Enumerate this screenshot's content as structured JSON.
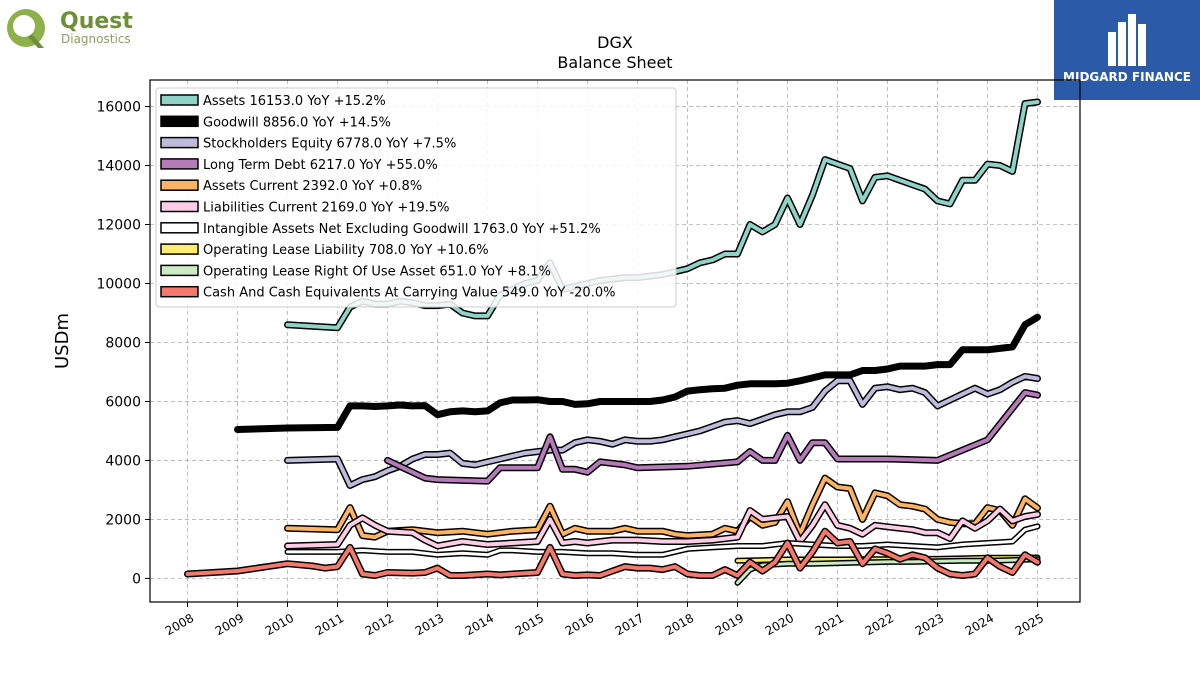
{
  "brand": {
    "left_logo_name": "Quest",
    "left_logo_sub": "Diagnostics",
    "right_logo_text": "MIDGARD FINANCE"
  },
  "chart_data": {
    "type": "line",
    "title": "DGX",
    "subtitle": "Balance  Sheet",
    "ylabel": "USDm",
    "xlabel": "",
    "ylim": [
      -800,
      16900
    ],
    "xlim": [
      2007.25,
      2025.85
    ],
    "yticks": [
      0,
      2000,
      4000,
      6000,
      8000,
      10000,
      12000,
      14000,
      16000
    ],
    "xticks": [
      2008,
      2009,
      2010,
      2011,
      2012,
      2013,
      2014,
      2015,
      2016,
      2017,
      2018,
      2019,
      2020,
      2021,
      2022,
      2023,
      2024,
      2025
    ],
    "grid": true,
    "legend_position": "top-left",
    "series": [
      {
        "name": "Assets",
        "legend": "Assets  16153.0 YoY +15.2%",
        "color": "#8dd3c7",
        "width": 4,
        "x": [
          2010.0,
          2011.0,
          2011.25,
          2011.5,
          2011.75,
          2012.0,
          2012.25,
          2012.5,
          2012.75,
          2013.0,
          2013.25,
          2013.5,
          2013.75,
          2014.0,
          2014.25,
          2014.5,
          2014.75,
          2015.0,
          2015.25,
          2015.5,
          2015.75,
          2016.0,
          2016.25,
          2016.5,
          2016.75,
          2017.0,
          2017.25,
          2017.5,
          2017.75,
          2018.0,
          2018.25,
          2018.5,
          2018.75,
          2019.0,
          2019.25,
          2019.5,
          2019.75,
          2020.0,
          2020.25,
          2020.5,
          2020.75,
          2021.0,
          2021.25,
          2021.5,
          2021.75,
          2022.0,
          2022.25,
          2022.5,
          2022.75,
          2023.0,
          2023.25,
          2023.5,
          2023.75,
          2024.0,
          2024.25,
          2024.5,
          2024.75,
          2025.0
        ],
        "y": [
          8600,
          8500,
          9200,
          9400,
          9300,
          9300,
          9400,
          9350,
          9250,
          9250,
          9300,
          9000,
          8900,
          8900,
          9600,
          9800,
          10000,
          10100,
          10700,
          9800,
          9900,
          10000,
          10100,
          10150,
          10200,
          10200,
          10250,
          10300,
          10400,
          10500,
          10700,
          10800,
          11000,
          11000,
          12000,
          11750,
          12000,
          12900,
          12000,
          13000,
          14200,
          14050,
          13900,
          12800,
          13600,
          13650,
          13500,
          13350,
          13200,
          12800,
          12700,
          13500,
          13500,
          14050,
          14000,
          13800,
          16100,
          16153
        ]
      },
      {
        "name": "Goodwill",
        "legend": "Goodwill  8856.0 YoY +14.5%",
        "color": "#000000",
        "width": 7,
        "x": [
          2009.0,
          2010.0,
          2011.0,
          2011.25,
          2011.5,
          2011.75,
          2012.0,
          2012.25,
          2012.5,
          2012.75,
          2013.0,
          2013.25,
          2013.5,
          2013.75,
          2014.0,
          2014.25,
          2014.5,
          2014.75,
          2015.0,
          2015.25,
          2015.5,
          2015.75,
          2016.0,
          2016.25,
          2016.5,
          2016.75,
          2017.0,
          2017.25,
          2017.5,
          2017.75,
          2018.0,
          2018.25,
          2018.5,
          2018.75,
          2019.0,
          2019.25,
          2019.5,
          2019.75,
          2020.0,
          2020.25,
          2020.5,
          2020.75,
          2021.0,
          2021.25,
          2021.5,
          2021.75,
          2022.0,
          2022.25,
          2022.5,
          2022.75,
          2023.0,
          2023.25,
          2023.5,
          2023.75,
          2024.0,
          2024.25,
          2024.5,
          2024.75,
          2025.0
        ],
        "y": [
          5050,
          5100,
          5120,
          5850,
          5850,
          5830,
          5850,
          5880,
          5850,
          5860,
          5550,
          5650,
          5680,
          5650,
          5680,
          5950,
          6050,
          6050,
          6060,
          6000,
          6000,
          5900,
          5920,
          6000,
          6000,
          6000,
          6000,
          6000,
          6050,
          6150,
          6350,
          6400,
          6430,
          6450,
          6550,
          6600,
          6600,
          6600,
          6620,
          6700,
          6800,
          6900,
          6900,
          6900,
          7050,
          7050,
          7100,
          7200,
          7200,
          7200,
          7250,
          7250,
          7750,
          7750,
          7750,
          7800,
          7850,
          8600,
          8856
        ]
      },
      {
        "name": "Stockholders Equity",
        "legend": "Stockholders Equity  6778.0 YoY +7.5%",
        "color": "#bebada",
        "width": 4,
        "x": [
          2010.0,
          2011.0,
          2011.25,
          2011.5,
          2011.75,
          2012.0,
          2012.25,
          2012.5,
          2012.75,
          2013.0,
          2013.25,
          2013.5,
          2013.75,
          2014.0,
          2014.25,
          2014.5,
          2014.75,
          2015.0,
          2015.25,
          2015.5,
          2015.75,
          2016.0,
          2016.25,
          2016.5,
          2016.75,
          2017.0,
          2017.25,
          2017.5,
          2017.75,
          2018.0,
          2018.25,
          2018.5,
          2018.75,
          2019.0,
          2019.25,
          2019.5,
          2019.75,
          2020.0,
          2020.25,
          2020.5,
          2020.75,
          2021.0,
          2021.25,
          2021.5,
          2021.75,
          2022.0,
          2022.25,
          2022.5,
          2022.75,
          2023.0,
          2023.25,
          2023.5,
          2023.75,
          2024.0,
          2024.25,
          2024.5,
          2024.75,
          2025.0
        ],
        "y": [
          4000,
          4050,
          3150,
          3350,
          3450,
          3650,
          3800,
          4050,
          4200,
          4200,
          4250,
          3900,
          3850,
          3950,
          4050,
          4150,
          4250,
          4300,
          4350,
          4350,
          4600,
          4700,
          4650,
          4550,
          4700,
          4650,
          4650,
          4700,
          4800,
          4900,
          5000,
          5150,
          5300,
          5350,
          5250,
          5400,
          5550,
          5650,
          5650,
          5800,
          6350,
          6700,
          6700,
          5900,
          6450,
          6500,
          6400,
          6450,
          6300,
          5850,
          6050,
          6250,
          6450,
          6250,
          6400,
          6650,
          6850,
          6778
        ]
      },
      {
        "name": "Long Term Debt",
        "legend": "Long Term Debt  6217.0 YoY +55.0%",
        "color": "#b57ab8",
        "width": 4,
        "x": [
          2012.0,
          2012.25,
          2012.5,
          2012.75,
          2013.0,
          2014.0,
          2014.25,
          2014.5,
          2014.75,
          2015.0,
          2015.25,
          2015.5,
          2015.75,
          2016.0,
          2016.25,
          2016.5,
          2016.75,
          2017.0,
          2018.0,
          2019.0,
          2019.25,
          2019.5,
          2019.75,
          2020.0,
          2020.25,
          2020.5,
          2020.75,
          2021.0,
          2022.0,
          2023.0,
          2024.0,
          2024.75,
          2025.0
        ],
        "y": [
          4000,
          3800,
          3600,
          3400,
          3350,
          3300,
          3750,
          3750,
          3750,
          3750,
          4800,
          3700,
          3700,
          3600,
          3950,
          3900,
          3850,
          3750,
          3800,
          3950,
          4300,
          4000,
          4000,
          4850,
          4000,
          4600,
          4600,
          4050,
          4050,
          4000,
          4700,
          6300,
          6217
        ]
      },
      {
        "name": "Assets Current",
        "legend": "Assets Current  2392.0 YoY +0.8%",
        "color": "#fdb462",
        "width": 4,
        "x": [
          2010.0,
          2011.0,
          2011.25,
          2011.5,
          2011.75,
          2012.0,
          2012.5,
          2013.0,
          2013.5,
          2014.0,
          2014.5,
          2015.0,
          2015.25,
          2015.5,
          2015.75,
          2016.0,
          2016.5,
          2016.75,
          2017.0,
          2017.5,
          2017.75,
          2018.0,
          2018.5,
          2018.75,
          2019.0,
          2019.25,
          2019.5,
          2019.75,
          2020.0,
          2020.25,
          2020.5,
          2020.75,
          2021.0,
          2021.25,
          2021.5,
          2021.75,
          2022.0,
          2022.25,
          2022.5,
          2022.75,
          2023.0,
          2023.25,
          2023.5,
          2023.75,
          2024.0,
          2024.25,
          2024.5,
          2024.75,
          2025.0
        ],
        "y": [
          1700,
          1650,
          2400,
          1450,
          1400,
          1600,
          1650,
          1550,
          1600,
          1500,
          1600,
          1650,
          2450,
          1500,
          1700,
          1600,
          1600,
          1700,
          1600,
          1600,
          1500,
          1450,
          1500,
          1700,
          1600,
          2100,
          1800,
          1900,
          2600,
          1500,
          2500,
          3400,
          3100,
          3050,
          2000,
          2900,
          2800,
          2500,
          2450,
          2350,
          2000,
          1900,
          1850,
          1850,
          2400,
          2300,
          1800,
          2700,
          2392
        ]
      },
      {
        "name": "Liabilities Current",
        "legend": "Liabilities Current  2169.0 YoY +19.5%",
        "color": "#fccde5",
        "width": 4,
        "x": [
          2010.0,
          2011.0,
          2011.25,
          2011.5,
          2011.75,
          2012.0,
          2012.5,
          2012.75,
          2013.0,
          2013.5,
          2014.0,
          2014.5,
          2015.0,
          2015.25,
          2015.5,
          2015.75,
          2016.0,
          2016.5,
          2017.0,
          2017.5,
          2018.0,
          2018.5,
          2019.0,
          2019.25,
          2019.5,
          2019.75,
          2020.0,
          2020.25,
          2020.5,
          2020.75,
          2021.0,
          2021.25,
          2021.5,
          2021.75,
          2022.0,
          2022.25,
          2022.5,
          2022.75,
          2023.0,
          2023.25,
          2023.5,
          2023.75,
          2024.0,
          2024.25,
          2024.5,
          2024.75,
          2025.0
        ],
        "y": [
          1100,
          1150,
          1800,
          2050,
          1800,
          1600,
          1550,
          1300,
          1100,
          1250,
          1150,
          1200,
          1250,
          2000,
          1200,
          1250,
          1200,
          1300,
          1300,
          1250,
          1250,
          1300,
          1400,
          2300,
          2000,
          2050,
          2100,
          1250,
          1800,
          2500,
          1800,
          1700,
          1500,
          1800,
          1750,
          1700,
          1650,
          1550,
          1550,
          1350,
          1950,
          1700,
          1950,
          2350,
          1950,
          2100,
          2169
        ]
      },
      {
        "name": "Intangible Assets Net Excluding Goodwill",
        "legend": "Intangible Assets Net Excluding Goodwill  1763.0 YoY +51.2%",
        "color": "#ffffff",
        "width": 3,
        "x": [
          2010.0,
          2011.0,
          2011.5,
          2012.0,
          2012.5,
          2013.0,
          2013.5,
          2014.0,
          2014.25,
          2014.5,
          2015.0,
          2015.5,
          2016.0,
          2016.5,
          2017.0,
          2017.5,
          2018.0,
          2018.5,
          2019.0,
          2019.5,
          2020.0,
          2020.5,
          2021.0,
          2021.5,
          2022.0,
          2022.5,
          2023.0,
          2023.5,
          2024.0,
          2024.5,
          2024.75,
          2025.0
        ],
        "y": [
          900,
          900,
          950,
          900,
          900,
          800,
          850,
          800,
          950,
          950,
          900,
          900,
          850,
          850,
          800,
          800,
          1000,
          1050,
          1100,
          1100,
          1200,
          1150,
          1100,
          1100,
          1150,
          1100,
          1050,
          1150,
          1200,
          1250,
          1650,
          1763
        ]
      },
      {
        "name": "Operating Lease Liability",
        "legend": "Operating Lease Liability  708.0 YoY +10.6%",
        "color": "#ffed6f",
        "width": 3,
        "x": [
          2019.0,
          2019.5,
          2020.0,
          2020.5,
          2021.0,
          2021.5,
          2022.0,
          2022.5,
          2023.0,
          2023.5,
          2024.0,
          2024.5,
          2025.0
        ],
        "y": [
          600,
          620,
          640,
          640,
          640,
          650,
          650,
          660,
          660,
          680,
          700,
          700,
          708
        ]
      },
      {
        "name": "Operating Lease Right Of Use Asset",
        "legend": "Operating Lease Right Of Use Asset  651.0 YoY +8.1%",
        "color": "#ccebc5",
        "width": 3,
        "x": [
          2019.0,
          2019.25,
          2019.5,
          2020.0,
          2020.5,
          2021.0,
          2021.5,
          2022.0,
          2022.5,
          2023.0,
          2023.5,
          2024.0,
          2024.5,
          2025.0
        ],
        "y": [
          -150,
          300,
          450,
          500,
          500,
          520,
          540,
          560,
          560,
          580,
          600,
          600,
          620,
          651
        ]
      },
      {
        "name": "Cash And Cash Equivalents At Carrying Value",
        "legend": "Cash And Cash Equivalents At Carrying Value  549.0 YoY -20.0%",
        "color": "#f4796b",
        "width": 4,
        "x": [
          2008.0,
          2009.0,
          2010.0,
          2010.5,
          2010.75,
          2011.0,
          2011.25,
          2011.5,
          2011.75,
          2012.0,
          2012.5,
          2012.75,
          2013.0,
          2013.25,
          2013.5,
          2014.0,
          2014.25,
          2014.5,
          2015.0,
          2015.25,
          2015.5,
          2015.75,
          2016.0,
          2016.25,
          2016.5,
          2016.75,
          2017.0,
          2017.25,
          2017.5,
          2017.75,
          2018.0,
          2018.25,
          2018.5,
          2018.75,
          2019.0,
          2019.25,
          2019.5,
          2019.75,
          2020.0,
          2020.25,
          2020.5,
          2020.75,
          2021.0,
          2021.25,
          2021.5,
          2021.75,
          2022.0,
          2022.25,
          2022.5,
          2022.75,
          2023.0,
          2023.25,
          2023.5,
          2023.75,
          2024.0,
          2024.25,
          2024.5,
          2024.75,
          2025.0
        ],
        "y": [
          150,
          250,
          500,
          420,
          350,
          400,
          1050,
          150,
          100,
          200,
          180,
          200,
          350,
          100,
          100,
          150,
          120,
          150,
          200,
          1050,
          150,
          100,
          120,
          100,
          250,
          400,
          350,
          350,
          300,
          400,
          150,
          100,
          100,
          300,
          100,
          550,
          250,
          550,
          1200,
          350,
          900,
          1600,
          1200,
          1250,
          500,
          1000,
          850,
          650,
          800,
          700,
          350,
          150,
          100,
          150,
          700,
          400,
          200,
          800,
          549
        ]
      }
    ]
  }
}
